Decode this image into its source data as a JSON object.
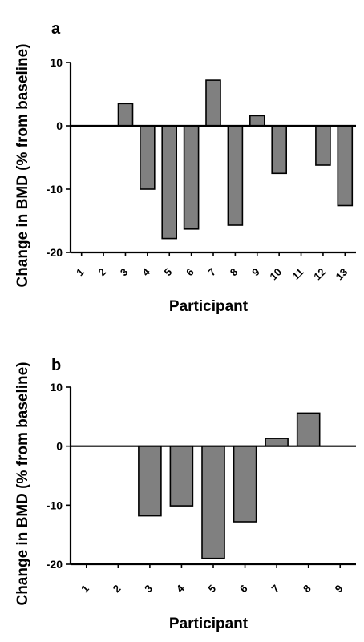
{
  "chart_data": [
    {
      "type": "bar",
      "panel": "a",
      "categories": [
        "1",
        "2",
        "3",
        "4",
        "5",
        "6",
        "7",
        "8",
        "9",
        "10",
        "11",
        "12",
        "13"
      ],
      "values": [
        null,
        null,
        3.5,
        -10,
        -17.8,
        -16.3,
        7.2,
        -15.7,
        1.6,
        -7.5,
        null,
        -6.2,
        -12.6
      ],
      "xlabel": "Participant",
      "ylabel": "Change in BMD (% from baseline)",
      "ylim": [
        -20,
        10
      ],
      "yticks": [
        -20,
        -10,
        0,
        10
      ],
      "ytick_labels": [
        "-20",
        "-10",
        "0",
        "10"
      ],
      "grid": false
    },
    {
      "type": "bar",
      "panel": "b",
      "categories": [
        "1",
        "2",
        "3",
        "4",
        "5",
        "6",
        "7",
        "8",
        "9"
      ],
      "values": [
        null,
        null,
        -11.8,
        -10.1,
        -19,
        -12.8,
        1.3,
        5.6,
        null
      ],
      "xlabel": "Participant",
      "ylabel": "Change in BMD (% from baseline)",
      "ylim": [
        -20,
        10
      ],
      "yticks": [
        -20,
        -10,
        0,
        10
      ],
      "ytick_labels": [
        "-20",
        "-10",
        "0",
        "10"
      ],
      "grid": false
    }
  ],
  "colors": {
    "bar_fill": "#808080",
    "bar_stroke": "#000000"
  }
}
